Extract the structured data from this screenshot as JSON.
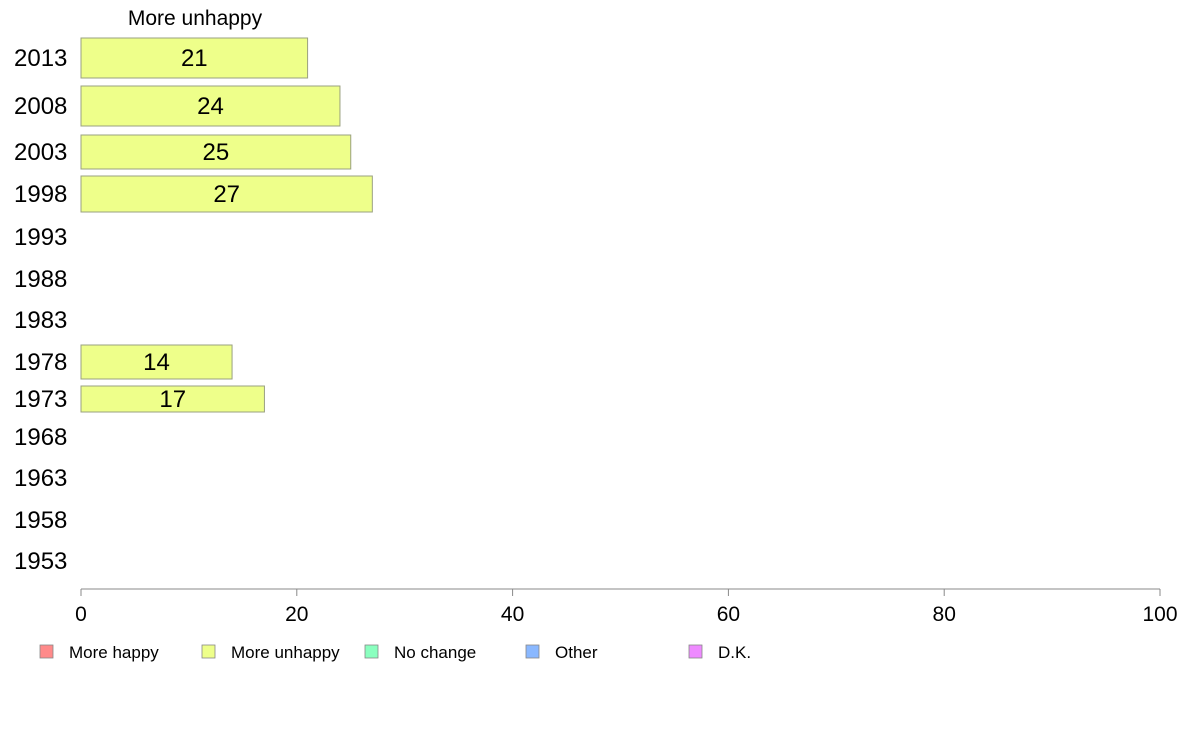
{
  "chart_data": {
    "type": "bar",
    "orientation": "horizontal",
    "series_title": "More unhappy",
    "categories": [
      "2013",
      "2008",
      "2003",
      "1998",
      "1993",
      "1988",
      "1983",
      "1978",
      "1973",
      "1968",
      "1963",
      "1958",
      "1953"
    ],
    "series": [
      {
        "name": "More unhappy",
        "values": [
          21,
          24,
          25,
          27,
          null,
          null,
          null,
          14,
          17,
          null,
          null,
          null,
          null
        ],
        "value_labels": [
          "21",
          "24",
          "25",
          "27",
          "",
          "",
          "",
          "14",
          "17",
          "",
          "",
          "",
          ""
        ]
      }
    ],
    "xlim": [
      0,
      100
    ],
    "x_ticks": [
      "0",
      "20",
      "40",
      "60",
      "80",
      "100"
    ],
    "grid": false,
    "legend": {
      "placement": "bottom",
      "entries": [
        {
          "label": "More happy",
          "color": "#ff8a8a"
        },
        {
          "label": "More unhappy",
          "color": "#eeff8a"
        },
        {
          "label": "No change",
          "color": "#8affbf"
        },
        {
          "label": "Other",
          "color": "#8ab8ff"
        },
        {
          "label": "D.K.",
          "color": "#ee8aff"
        }
      ]
    },
    "bar_color": "#eeff8a"
  }
}
